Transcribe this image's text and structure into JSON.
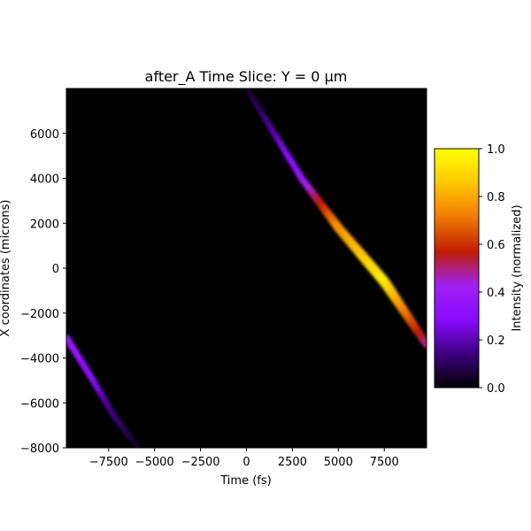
{
  "chart_data": {
    "type": "heatmap",
    "title": "after_A Time Slice: Y = 0 µm",
    "xlabel": "Time (fs)",
    "ylabel": "X coordinates (microns)",
    "xlim": [
      -9800,
      9800
    ],
    "ylim": [
      -8000,
      8000
    ],
    "x_ticks": [
      -7500,
      -5000,
      -2500,
      0,
      2500,
      5000,
      7500
    ],
    "x_tick_labels": [
      "−7500",
      "−5000",
      "−2500",
      "0",
      "2500",
      "5000",
      "7500"
    ],
    "y_ticks": [
      -8000,
      -6000,
      -4000,
      -2000,
      0,
      2000,
      4000,
      6000
    ],
    "y_tick_labels": [
      "−8000",
      "−6000",
      "−4000",
      "−2000",
      "0",
      "2000",
      "4000",
      "6000"
    ],
    "colorbar": {
      "label": "Intensity (normalized)",
      "range": [
        0.0,
        1.0
      ],
      "ticks": [
        0.0,
        0.2,
        0.4,
        0.6,
        0.8,
        1.0
      ],
      "tick_labels": [
        "0.0",
        "0.2",
        "0.4",
        "0.6",
        "0.8",
        "1.0"
      ],
      "colormap": "gnuplot",
      "color_stops": [
        "#000000",
        "#3d0080",
        "#8a0bff",
        "#a020f0",
        "#c01e00",
        "#f07a00",
        "#ffc800",
        "#ffff00"
      ]
    },
    "features": [
      {
        "name": "main pulse band",
        "path": [
          [
            0,
            8000
          ],
          [
            3000,
            4000
          ],
          [
            5000,
            1800
          ],
          [
            7500,
            -600
          ],
          [
            9800,
            -3400
          ]
        ],
        "intensity": [
          0.05,
          0.35,
          0.75,
          0.95,
          0.5
        ]
      },
      {
        "name": "wrapped band",
        "path": [
          [
            -9800,
            -3100
          ],
          [
            -8500,
            -4800
          ],
          [
            -7200,
            -6600
          ],
          [
            -5900,
            -8000
          ]
        ],
        "intensity": [
          0.4,
          0.3,
          0.15,
          0.05
        ]
      }
    ],
    "grid": false,
    "legend": "none"
  }
}
